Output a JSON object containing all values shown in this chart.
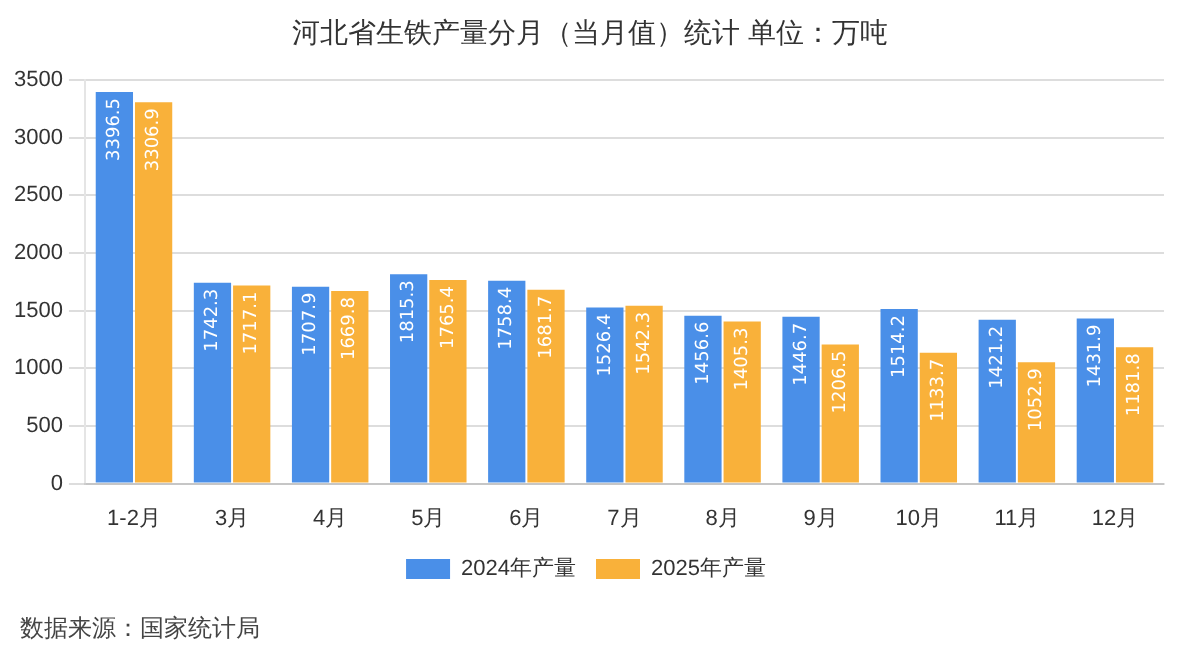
{
  "chart_data": {
    "type": "bar",
    "title": "河北省生铁产量分月（当月值）统计  单位：万吨",
    "categories": [
      "1-2月",
      "3月",
      "4月",
      "5月",
      "6月",
      "7月",
      "8月",
      "9月",
      "10月",
      "11月",
      "12月"
    ],
    "series": [
      {
        "name": "2024年产量",
        "color": "#4a8fe8",
        "values": [
          3396.5,
          1742.3,
          1707.9,
          1815.3,
          1758.4,
          1526.4,
          1456.6,
          1446.7,
          1514.2,
          1421.2,
          1431.9
        ]
      },
      {
        "name": "2025年产量",
        "color": "#f9b13a",
        "values": [
          3306.9,
          1717.1,
          1669.8,
          1765.4,
          1681.7,
          1542.3,
          1405.3,
          1206.5,
          1133.7,
          1052.9,
          1181.8
        ]
      }
    ],
    "ylim": [
      0,
      3500
    ],
    "yticks": [
      0,
      500,
      1000,
      1500,
      2000,
      2500,
      3000,
      3500
    ],
    "grid": "y",
    "legend": "bottom",
    "data_labels": true,
    "annotations": [
      "数据来源：国家统计局"
    ]
  }
}
